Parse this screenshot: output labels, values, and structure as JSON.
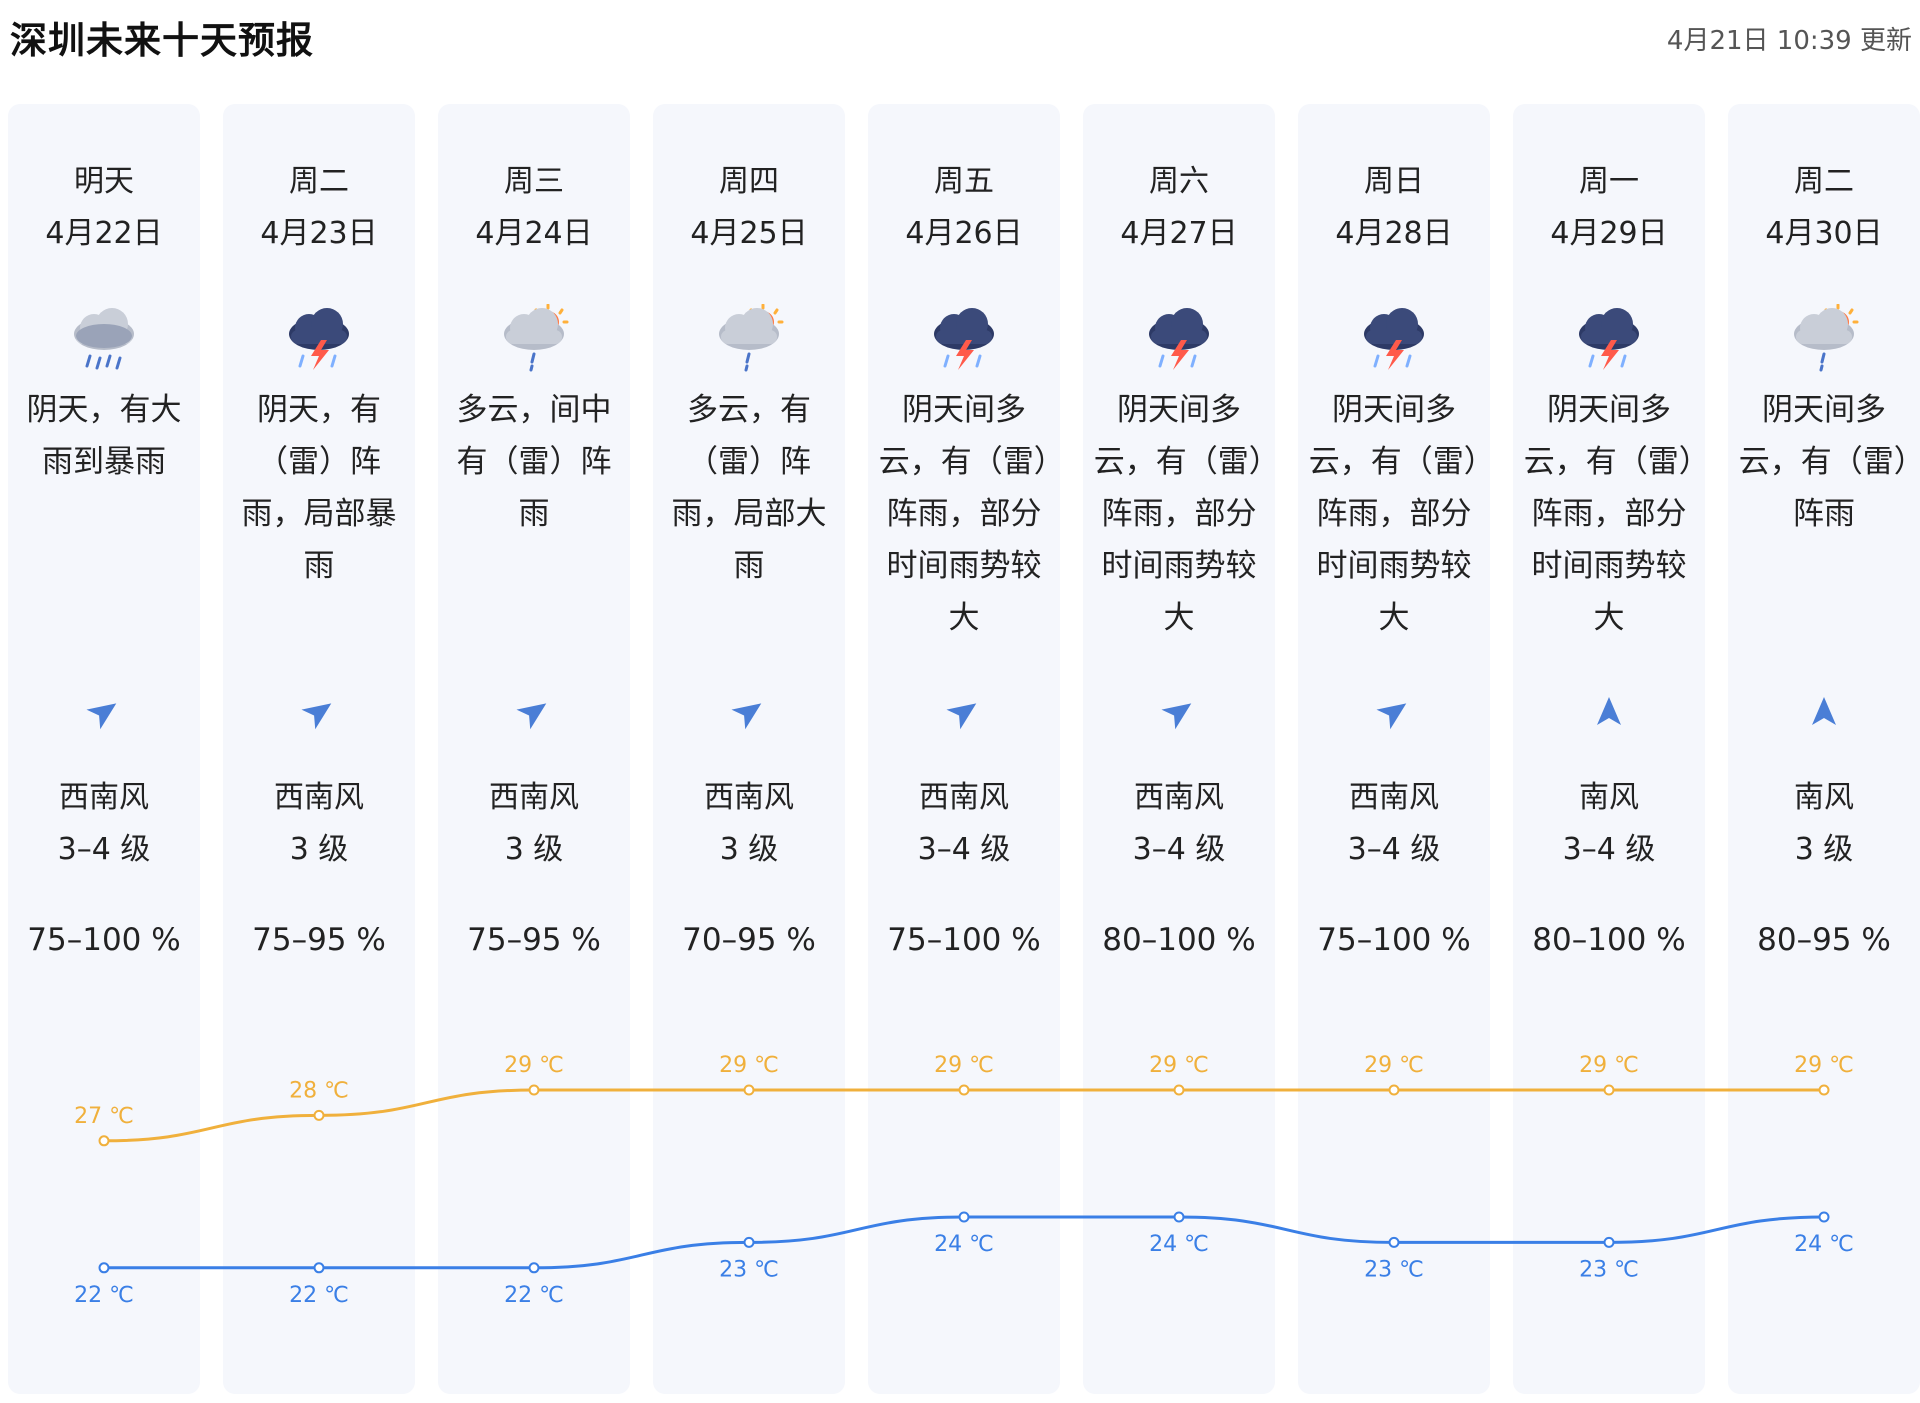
{
  "header": {
    "title": "深圳未来十天预报",
    "updated": "4月21日 10:39 更新"
  },
  "days": [
    {
      "day": "明天",
      "date": "4月22日",
      "icon": "rain-cloud-icon",
      "desc": "阴天，有大雨到暴雨",
      "wind": "西南风",
      "level": "3–4 级",
      "humidity": "75–100 %",
      "dir": "southwest"
    },
    {
      "day": "周二",
      "date": "4月23日",
      "icon": "thunderstorm-icon",
      "desc": "阴天，有（雷）阵雨，局部暴雨",
      "wind": "西南风",
      "level": "3 级",
      "humidity": "75–95 %",
      "dir": "southwest"
    },
    {
      "day": "周三",
      "date": "4月24日",
      "icon": "sun-cloud-rain-icon",
      "desc": "多云，间中有（雷）阵雨",
      "wind": "西南风",
      "level": "3 级",
      "humidity": "75–95 %",
      "dir": "southwest"
    },
    {
      "day": "周四",
      "date": "4月25日",
      "icon": "sun-cloud-rain-icon",
      "desc": "多云，有（雷）阵雨，局部大雨",
      "wind": "西南风",
      "level": "3 级",
      "humidity": "70–95 %",
      "dir": "southwest"
    },
    {
      "day": "周五",
      "date": "4月26日",
      "icon": "thunderstorm-icon",
      "desc": "阴天间多云，有（雷）阵雨，部分时间雨势较大",
      "wind": "西南风",
      "level": "3–4 级",
      "humidity": "75–100 %",
      "dir": "southwest"
    },
    {
      "day": "周六",
      "date": "4月27日",
      "icon": "thunderstorm-icon",
      "desc": "阴天间多云，有（雷）阵雨，部分时间雨势较大",
      "wind": "西南风",
      "level": "3–4 级",
      "humidity": "80–100 %",
      "dir": "southwest"
    },
    {
      "day": "周日",
      "date": "4月28日",
      "icon": "thunderstorm-icon",
      "desc": "阴天间多云，有（雷）阵雨，部分时间雨势较大",
      "wind": "西南风",
      "level": "3–4 级",
      "humidity": "75–100 %",
      "dir": "southwest"
    },
    {
      "day": "周一",
      "date": "4月29日",
      "icon": "thunderstorm-icon",
      "desc": "阴天间多云，有（雷）阵雨，部分时间雨势较大",
      "wind": "南风",
      "level": "3–4 级",
      "humidity": "80–100 %",
      "dir": "south"
    },
    {
      "day": "周二",
      "date": "4月30日",
      "icon": "sun-cloud-rain-icon",
      "desc": "阴天间多云，有（雷）阵雨",
      "wind": "南风",
      "level": "3 级",
      "humidity": "80–95 %",
      "dir": "south"
    }
  ],
  "chart_data": {
    "type": "line",
    "x": [
      "4月22日",
      "4月23日",
      "4月24日",
      "4月25日",
      "4月26日",
      "4月27日",
      "4月28日",
      "4月29日",
      "4月30日"
    ],
    "series": [
      {
        "name": "high",
        "values": [
          27,
          28,
          29,
          29,
          29,
          29,
          29,
          29,
          29
        ],
        "color": "#f0b03c"
      },
      {
        "name": "low",
        "values": [
          22,
          22,
          22,
          23,
          24,
          24,
          23,
          23,
          24
        ],
        "color": "#3a7fe6"
      }
    ],
    "unit": "℃",
    "ylim": [
      22,
      29
    ]
  },
  "colors": {
    "high": "#f0b03c",
    "low": "#3a7fe6",
    "arrow": "#4a7ed6",
    "column_bg": "#f5f7fc"
  }
}
